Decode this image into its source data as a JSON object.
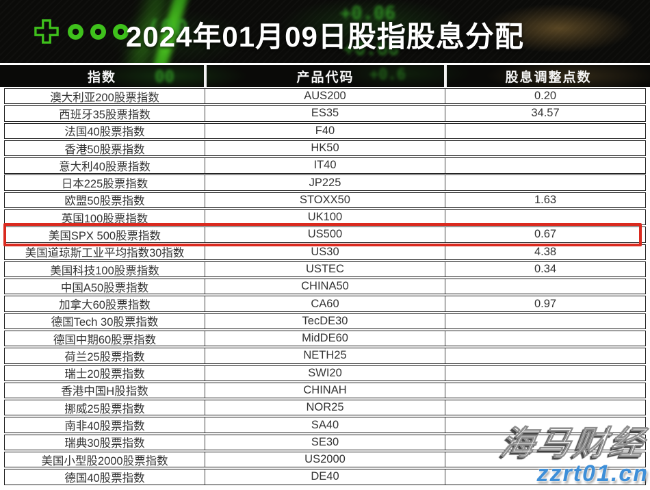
{
  "banner": {
    "title": "2024年01月09日股指股息分配",
    "logo_dots": 3,
    "background_ticker": [
      "+0.06",
      "+0.66",
      "(00",
      "00",
      "+0.6"
    ]
  },
  "chart_data": {
    "type": "table",
    "title": "2024年01月09日股指股息分配",
    "columns": [
      "指数",
      "产品代码",
      "股息调整点数"
    ],
    "rows": [
      [
        "澳大利亚200股票指数",
        "AUS200",
        "0.20"
      ],
      [
        "西班牙35股票指数",
        "ES35",
        "34.57"
      ],
      [
        "法国40股票指数",
        "F40",
        ""
      ],
      [
        "香港50股票指数",
        "HK50",
        ""
      ],
      [
        "意大利40股票指数",
        "IT40",
        ""
      ],
      [
        "日本225股票指数",
        "JP225",
        ""
      ],
      [
        "欧盟50股票指数",
        "STOXX50",
        "1.63"
      ],
      [
        "英国100股票指数",
        "UK100",
        ""
      ],
      [
        "美国SPX 500股票指数",
        "US500",
        "0.67"
      ],
      [
        "美国道琼斯工业平均指数30指数",
        "US30",
        "4.38"
      ],
      [
        "美国科技100股票指数",
        "USTEC",
        "0.34"
      ],
      [
        "中国A50股票指数",
        "CHINA50",
        ""
      ],
      [
        "加拿大60股票指数",
        "CA60",
        "0.97"
      ],
      [
        "德国Tech 30股票指数",
        "TecDE30",
        ""
      ],
      [
        "德国中期60股票指数",
        "MidDE60",
        ""
      ],
      [
        "荷兰25股票指数",
        "NETH25",
        ""
      ],
      [
        "瑞士20股票指数",
        "SWI20",
        ""
      ],
      [
        "香港中国H股指数",
        "CHINAH",
        ""
      ],
      [
        "挪威25股票指数",
        "NOR25",
        ""
      ],
      [
        "南非40股票指数",
        "SA40",
        ""
      ],
      [
        "瑞典30股票指数",
        "SE30",
        ""
      ],
      [
        "美国小型股2000股票指数",
        "US2000",
        ""
      ],
      [
        "德国40股票指数",
        "DE40",
        ""
      ]
    ],
    "highlighted_row_index": 8,
    "layout": {
      "header_style": "dark",
      "grid": true,
      "legend": "none"
    }
  },
  "watermark": {
    "brand": "海马财经",
    "site": "zzrt01.cn"
  },
  "colors": {
    "accent_green": "#3fc11c",
    "highlight_red": "#da2a1f",
    "watermark_blue": "#3e8fd8",
    "banner_bg": "#0b0b09",
    "gold_glow": "#8a6d35",
    "row_border": "#1f1f1f"
  }
}
